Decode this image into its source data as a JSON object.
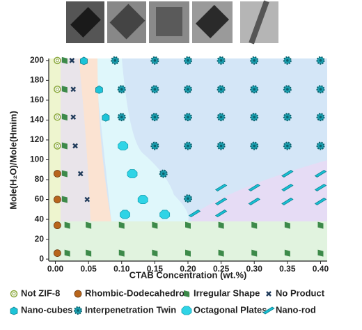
{
  "chart_data": {
    "type": "scatter",
    "x_label": "CTAB Concentration (wt.%)",
    "y_label": "Mole(H₂O)/Mole(Hmim)",
    "xlim": [
      -0.01,
      0.41
    ],
    "ylim": [
      -2,
      202
    ],
    "xticks": [
      {
        "value": 0,
        "label": "0.00"
      },
      {
        "value": 0.05,
        "label": "0.05"
      },
      {
        "value": 0.1,
        "label": "0.10"
      },
      {
        "value": 0.15,
        "label": "0.15"
      },
      {
        "value": 0.2,
        "label": "0.20"
      },
      {
        "value": 0.25,
        "label": "0.25"
      },
      {
        "value": 0.3,
        "label": "0.30"
      },
      {
        "value": 0.35,
        "label": "0.35"
      },
      {
        "value": 0.4,
        "label": "0.40"
      }
    ],
    "yticks": [
      0,
      20,
      40,
      60,
      80,
      100,
      120,
      140,
      160,
      180,
      200
    ],
    "series": [
      {
        "name": "Not ZIF-8",
        "color": "#8aa83a",
        "x": [
          0.003,
          0.003,
          0.003,
          0.003
        ],
        "values": [
          200,
          171,
          143,
          114
        ]
      },
      {
        "name": "Rhombic-Dodecahedron",
        "color": "#b8651c",
        "x": [
          0.003,
          0.003,
          0.003,
          0.003
        ],
        "values": [
          86,
          60,
          34,
          6
        ]
      },
      {
        "name": "Irregular Shape",
        "color": "#3d8a4a",
        "x": [
          0.014,
          0.014,
          0.014,
          0.014,
          0.014,
          0.014,
          0.018,
          0.05,
          0.1,
          0.15,
          0.2,
          0.25,
          0.3,
          0.35,
          0.4,
          0.018,
          0.05,
          0.1,
          0.15,
          0.2,
          0.25,
          0.3,
          0.35,
          0.4
        ],
        "values": [
          200,
          171,
          143,
          114,
          86,
          60,
          34,
          34,
          34,
          34,
          34,
          34,
          34,
          34,
          34,
          6,
          6,
          6,
          6,
          6,
          6,
          6,
          6,
          6
        ]
      },
      {
        "name": "No Product",
        "color": "#1f3a5a",
        "x": [
          0.025,
          0.027,
          0.027,
          0.03,
          0.038,
          0.048
        ],
        "values": [
          200,
          171,
          143,
          114,
          86,
          60
        ]
      },
      {
        "name": "Nano-cubes",
        "color": "#1cc4d8",
        "x": [
          0.043,
          0.066,
          0.076
        ],
        "values": [
          200,
          171,
          143
        ]
      },
      {
        "name": "Interpenetration Twin",
        "color": "#1a9fb0",
        "x": [
          0.09,
          0.15,
          0.2,
          0.25,
          0.3,
          0.35,
          0.4,
          0.1,
          0.15,
          0.2,
          0.25,
          0.3,
          0.35,
          0.4,
          0.1,
          0.15,
          0.2,
          0.25,
          0.3,
          0.35,
          0.4,
          0.15,
          0.2,
          0.25,
          0.3,
          0.35,
          0.4,
          0.163,
          0.2
        ],
        "values": [
          200,
          200,
          200,
          200,
          200,
          200,
          200,
          171,
          171,
          171,
          171,
          171,
          171,
          171,
          143,
          143,
          143,
          143,
          143,
          143,
          143,
          114,
          114,
          114,
          114,
          114,
          114,
          86,
          61
        ]
      },
      {
        "name": "Octagonal Plates",
        "color": "#2fd4e6",
        "x": [
          0.102,
          0.116,
          0.132,
          0.105,
          0.165
        ],
        "values": [
          114,
          86,
          60,
          45,
          45
        ]
      },
      {
        "name": "Nano-rod",
        "color": "#18c0d4",
        "x": [
          0.35,
          0.4,
          0.25,
          0.3,
          0.35,
          0.4,
          0.25,
          0.3,
          0.35,
          0.4,
          0.21,
          0.25
        ],
        "values": [
          86,
          86,
          72,
          72,
          72,
          72,
          58,
          58,
          58,
          58,
          46,
          46
        ]
      }
    ]
  }
}
